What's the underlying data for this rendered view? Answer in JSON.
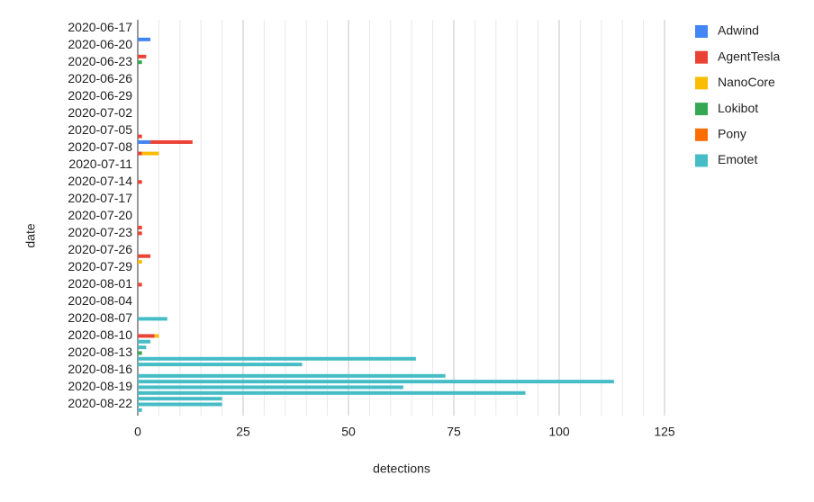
{
  "chart_data": {
    "type": "stacked-barh",
    "x_label": "detections",
    "y_label": "date",
    "categories": [
      "2020-06-17",
      null,
      null,
      "2020-06-20",
      null,
      null,
      "2020-06-23",
      null,
      null,
      "2020-06-26",
      null,
      null,
      "2020-06-29",
      null,
      null,
      "2020-07-02",
      null,
      null,
      "2020-07-05",
      null,
      null,
      "2020-07-08",
      null,
      null,
      "2020-07-11",
      null,
      null,
      "2020-07-14",
      null,
      null,
      "2020-07-17",
      null,
      null,
      "2020-07-20",
      null,
      null,
      "2020-07-23",
      null,
      null,
      "2020-07-26",
      null,
      null,
      "2020-07-29",
      null,
      null,
      "2020-08-01",
      null,
      null,
      "2020-08-04",
      null,
      null,
      "2020-08-07",
      null,
      null,
      "2020-08-10",
      null,
      null,
      "2020-08-13",
      null,
      null,
      "2020-08-16",
      null,
      null,
      "2020-08-19",
      null,
      null,
      "2020-08-22",
      null
    ],
    "series": [
      {
        "name": "Adwind",
        "color": "#4285f4",
        "values": [
          0,
          0,
          3,
          0,
          0,
          0,
          0,
          0,
          0,
          0,
          0,
          0,
          0,
          0,
          0,
          0,
          0,
          0,
          0,
          0,
          3,
          0,
          0,
          0,
          0,
          0,
          0,
          0,
          0,
          0,
          0,
          0,
          0,
          0,
          0,
          0,
          0,
          0,
          0,
          0,
          0,
          0,
          0,
          0,
          0,
          0,
          0,
          0,
          0,
          0,
          0,
          0,
          0,
          0,
          0,
          0,
          0,
          0,
          0,
          0,
          0,
          0,
          0,
          0,
          0,
          0,
          0,
          0
        ]
      },
      {
        "name": "AgentTesla",
        "color": "#ea4335",
        "values": [
          0,
          0,
          0,
          0,
          0,
          2,
          0,
          0,
          0,
          0,
          0,
          0,
          0,
          0,
          0,
          0,
          0,
          0,
          0,
          1,
          10,
          0,
          1,
          0,
          0,
          0,
          0,
          1,
          0,
          0,
          0,
          0,
          0,
          0,
          0,
          1,
          1,
          0,
          0,
          0,
          3,
          0,
          0,
          0,
          0,
          1,
          0,
          0,
          0,
          0,
          0,
          0,
          0,
          0,
          4,
          0,
          0,
          0,
          0,
          0,
          0,
          0,
          0,
          0,
          0,
          0,
          0,
          0
        ]
      },
      {
        "name": "NanoCore",
        "color": "#fbbc04",
        "values": [
          0,
          0,
          0,
          0,
          0,
          0,
          0,
          0,
          0,
          0,
          0,
          0,
          0,
          0,
          0,
          0,
          0,
          0,
          0,
          0,
          0,
          0,
          4,
          0,
          0,
          0,
          0,
          0,
          0,
          0,
          0,
          0,
          0,
          0,
          0,
          0,
          0,
          0,
          0,
          0,
          0,
          1,
          0,
          0,
          0,
          0,
          0,
          0,
          0,
          0,
          0,
          0,
          0,
          0,
          1,
          0,
          0,
          0,
          0,
          0,
          0,
          0,
          0,
          0,
          0,
          0,
          0,
          0
        ]
      },
      {
        "name": "Lokibot",
        "color": "#34a853",
        "values": [
          0,
          0,
          0,
          0,
          0,
          0,
          1,
          0,
          0,
          0,
          0,
          0,
          0,
          0,
          0,
          0,
          0,
          0,
          0,
          0,
          0,
          0,
          0,
          0,
          0,
          0,
          0,
          0,
          0,
          0,
          0,
          0,
          0,
          0,
          0,
          0,
          0,
          0,
          0,
          0,
          0,
          0,
          0,
          0,
          0,
          0,
          0,
          0,
          0,
          0,
          0,
          0,
          0,
          0,
          0,
          0,
          0,
          1,
          0,
          0,
          0,
          0,
          0,
          0,
          0,
          0,
          0,
          0
        ]
      },
      {
        "name": "Pony",
        "color": "#ff6d01",
        "values": [
          0,
          0,
          0,
          0,
          0,
          0,
          0,
          0,
          0,
          0,
          0,
          0,
          0,
          0,
          0,
          0,
          0,
          0,
          0,
          0,
          0,
          0,
          0,
          0,
          0,
          0,
          0,
          0,
          0,
          0,
          0,
          0,
          0,
          0,
          0,
          0,
          0,
          0,
          0,
          0,
          0,
          0,
          0,
          0,
          0,
          0,
          0,
          0,
          0,
          0,
          0,
          0,
          0,
          0,
          0,
          0,
          0,
          0,
          0,
          0,
          0,
          0,
          0,
          0,
          0,
          0,
          0,
          0
        ]
      },
      {
        "name": "Emotet",
        "color": "#46bdc6",
        "values": [
          0,
          0,
          0,
          0,
          0,
          0,
          0,
          0,
          0,
          0,
          0,
          0,
          0,
          0,
          0,
          0,
          0,
          0,
          0,
          0,
          0,
          0,
          0,
          0,
          0,
          0,
          0,
          0,
          0,
          0,
          0,
          0,
          0,
          0,
          0,
          0,
          0,
          0,
          0,
          0,
          0,
          0,
          0,
          0,
          0,
          0,
          0,
          0,
          0,
          0,
          0,
          7,
          0,
          0,
          0,
          3,
          2,
          0,
          66,
          39,
          0,
          73,
          113,
          63,
          92,
          20,
          20,
          1
        ]
      }
    ],
    "xlim": [
      0,
      125
    ],
    "xticks": [
      0,
      25,
      50,
      75,
      100,
      125
    ],
    "xminorticks": [
      5,
      10,
      15,
      20,
      30,
      35,
      40,
      45,
      55,
      60,
      65,
      70,
      80,
      85,
      90,
      95,
      105,
      110,
      115,
      120
    ],
    "grid": true,
    "legend": "right"
  }
}
